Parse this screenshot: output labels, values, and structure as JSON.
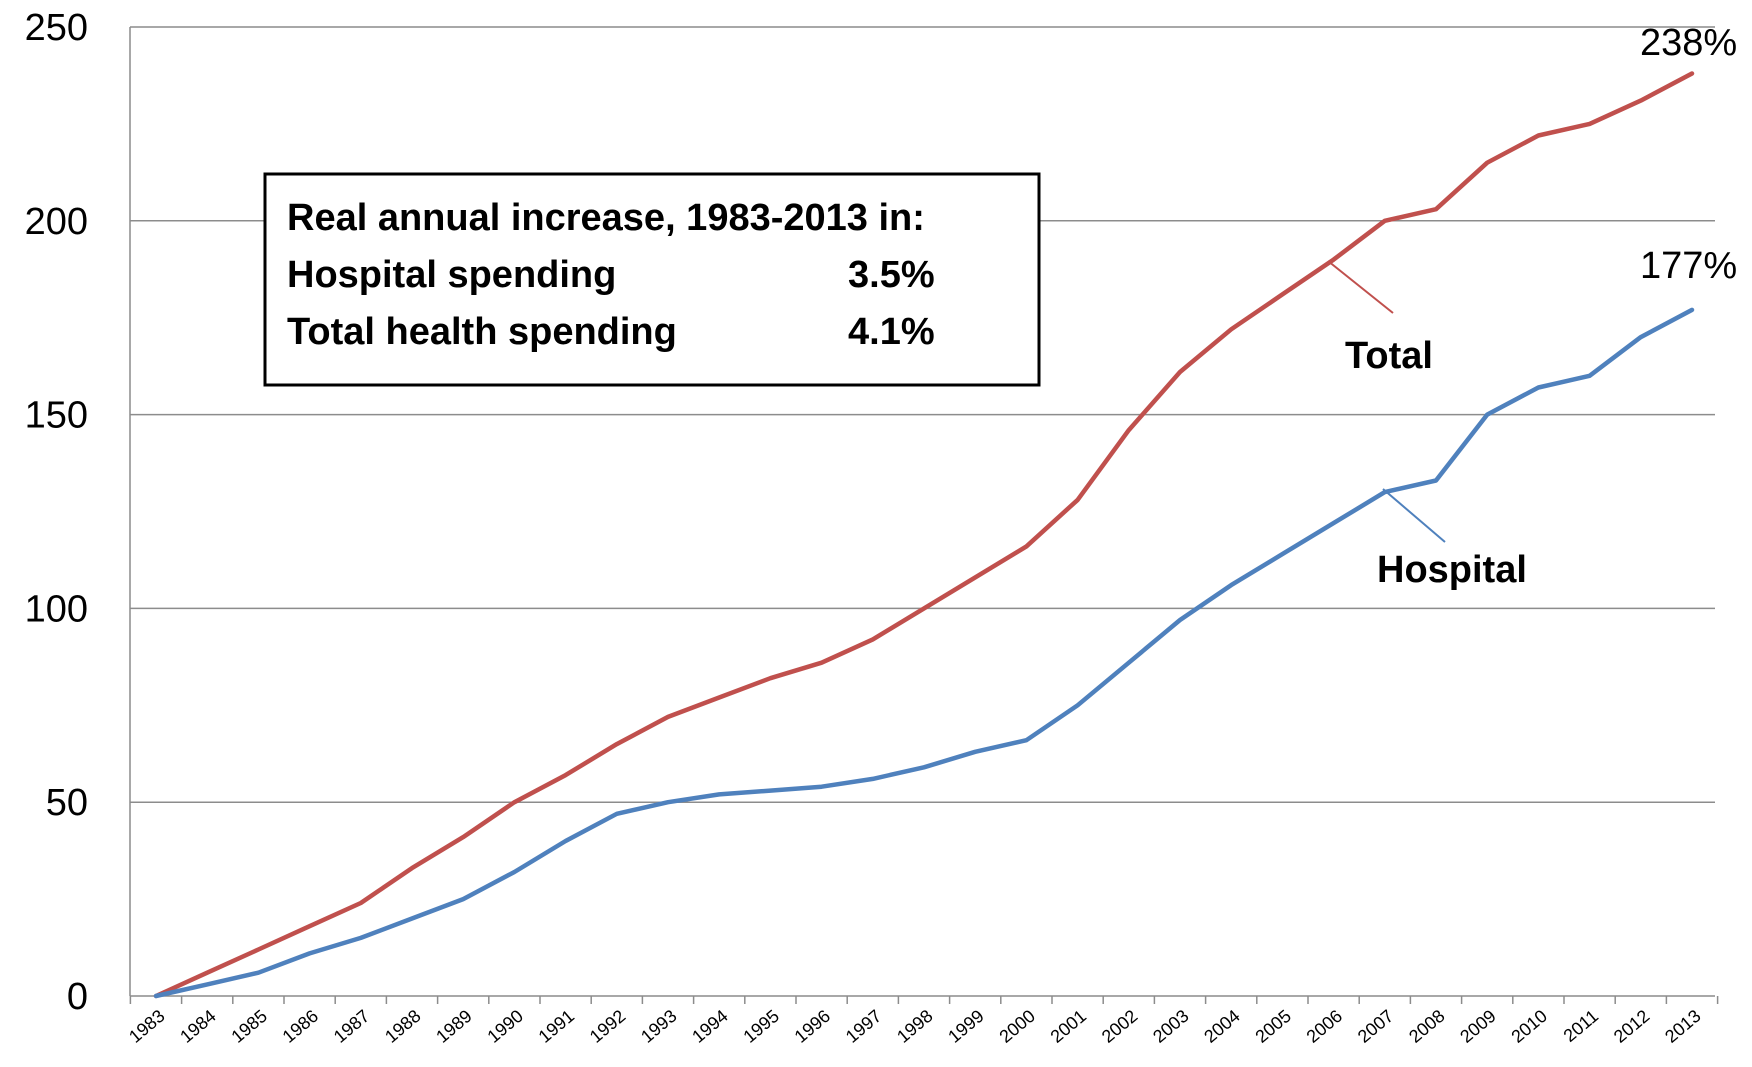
{
  "chart_data": {
    "type": "line",
    "categories": [
      "1983",
      "1984",
      "1985",
      "1986",
      "1987",
      "1988",
      "1989",
      "1990",
      "1991",
      "1992",
      "1993",
      "1994",
      "1995",
      "1996",
      "1997",
      "1998",
      "1999",
      "2000",
      "2001",
      "2002",
      "2003",
      "2004",
      "2005",
      "2006",
      "2007",
      "2008",
      "2009",
      "2010",
      "2011",
      "2012",
      "2013"
    ],
    "series": [
      {
        "name": "Total",
        "color": "#c0504d",
        "values": [
          0,
          6,
          12,
          18,
          24,
          33,
          41,
          50,
          57,
          65,
          72,
          77,
          82,
          86,
          92,
          100,
          108,
          116,
          128,
          146,
          161,
          172,
          181,
          190,
          200,
          203,
          215,
          222,
          225,
          231,
          238
        ]
      },
      {
        "name": "Hospital",
        "color": "#4f81bd",
        "values": [
          0,
          3,
          6,
          11,
          15,
          20,
          25,
          32,
          40,
          47,
          50,
          52,
          53,
          54,
          56,
          59,
          63,
          66,
          75,
          86,
          97,
          106,
          114,
          122,
          130,
          133,
          150,
          157,
          160,
          170,
          177
        ]
      }
    ],
    "ylim": [
      0,
      250
    ],
    "yticks": [
      "0",
      "50",
      "100",
      "150",
      "200",
      "250"
    ],
    "grid": true,
    "end_labels": [
      "238%",
      "177%"
    ],
    "annotation_box": {
      "title": "Real annual increase, 1983-2013 in:",
      "rows": [
        {
          "label": "Hospital spending",
          "value": "3.5%"
        },
        {
          "label": "Total health spending",
          "value": "4.1%"
        }
      ]
    }
  }
}
